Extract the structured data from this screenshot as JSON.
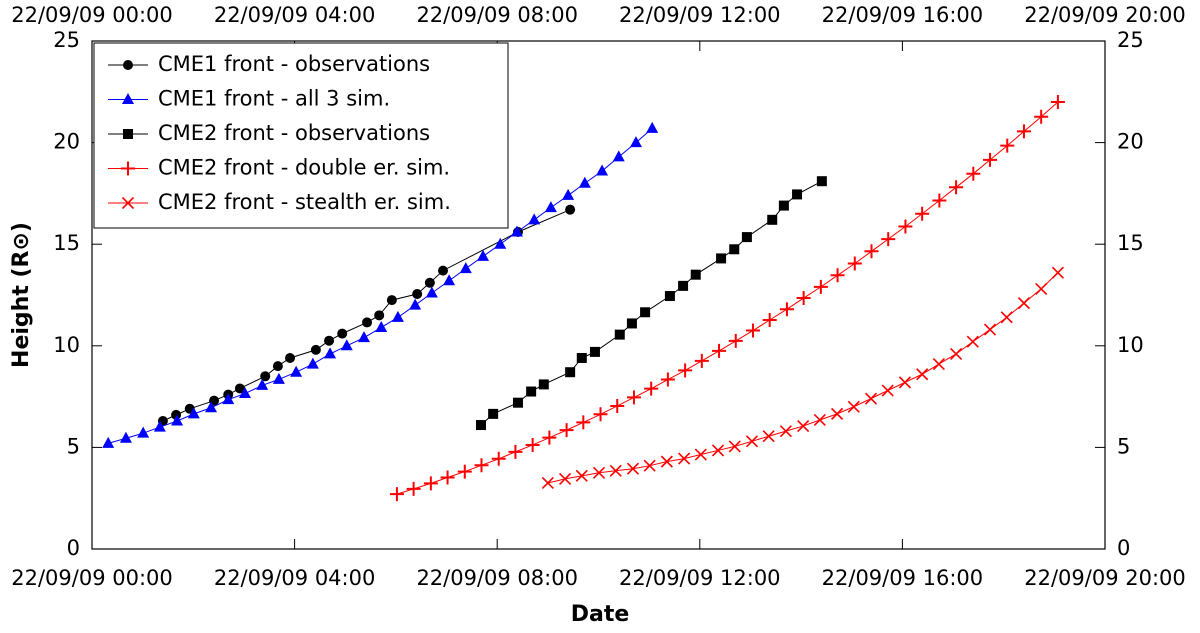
{
  "chart_data": {
    "type": "line",
    "xlabel": "Date",
    "ylabel": "Height (R⊙)",
    "xlim": [
      0,
      20
    ],
    "xticks": [
      {
        "value": 0,
        "label": "22/09/09 00:00"
      },
      {
        "value": 4,
        "label": "22/09/09 04:00"
      },
      {
        "value": 8,
        "label": "22/09/09 08:00"
      },
      {
        "value": 12,
        "label": "22/09/09 12:00"
      },
      {
        "value": 16,
        "label": "22/09/09 16:00"
      },
      {
        "value": 20,
        "label": "22/09/09 20:00"
      }
    ],
    "ylim": [
      0,
      25
    ],
    "yticks": [
      0,
      5,
      10,
      15,
      20,
      25
    ],
    "legend": "upper left",
    "grid": false,
    "series": [
      {
        "name": "CME1 front - observations",
        "color": "#000000",
        "marker": "circle",
        "x": [
          1.4,
          1.66,
          1.93,
          2.41,
          2.69,
          2.92,
          3.42,
          3.67,
          3.91,
          4.42,
          4.68,
          4.94,
          5.43,
          5.67,
          5.92,
          6.42,
          6.67,
          6.93,
          8.41,
          9.44
        ],
        "values": [
          6.3,
          6.6,
          6.9,
          7.3,
          7.6,
          7.9,
          8.5,
          9.0,
          9.4,
          9.8,
          10.25,
          10.6,
          11.15,
          11.5,
          12.25,
          12.55,
          13.1,
          13.7,
          15.6,
          16.7
        ]
      },
      {
        "name": "CME1 front - all 3 sim.",
        "color": "#0000ff",
        "marker": "triangle",
        "x": [
          0.32,
          0.67,
          1.01,
          1.34,
          1.68,
          2.01,
          2.35,
          2.69,
          3.02,
          3.36,
          3.69,
          4.03,
          4.36,
          4.7,
          5.03,
          5.37,
          5.71,
          6.04,
          6.38,
          6.71,
          7.05,
          7.38,
          7.72,
          8.06,
          8.39,
          8.73,
          9.06,
          9.4,
          9.73,
          10.07,
          10.4,
          10.74,
          11.06
        ],
        "values": [
          5.2,
          5.45,
          5.7,
          6.0,
          6.3,
          6.65,
          6.95,
          7.35,
          7.65,
          8.05,
          8.35,
          8.7,
          9.1,
          9.6,
          10.0,
          10.4,
          10.9,
          11.4,
          12.0,
          12.6,
          13.2,
          13.8,
          14.4,
          15.0,
          15.6,
          16.2,
          16.8,
          17.4,
          18.0,
          18.6,
          19.3,
          20.0,
          20.7
        ]
      },
      {
        "name": "CME2 front - observations",
        "color": "#000000",
        "marker": "square",
        "x": [
          7.68,
          7.92,
          8.41,
          8.67,
          8.92,
          9.44,
          9.67,
          9.93,
          10.42,
          10.66,
          10.92,
          11.41,
          11.67,
          11.92,
          12.42,
          12.68,
          12.93,
          13.43,
          13.66,
          13.92,
          14.41
        ],
        "values": [
          6.1,
          6.65,
          7.2,
          7.75,
          8.1,
          8.7,
          9.4,
          9.7,
          10.55,
          11.1,
          11.65,
          12.45,
          12.95,
          13.5,
          14.3,
          14.75,
          15.35,
          16.2,
          16.9,
          17.45,
          18.1
        ]
      },
      {
        "name": "CME2 front - double er. sim.",
        "color": "#ff0000",
        "marker": "plus",
        "x": [
          6.02,
          6.35,
          6.69,
          7.02,
          7.36,
          7.69,
          8.03,
          8.36,
          8.7,
          9.03,
          9.37,
          9.7,
          10.04,
          10.37,
          10.7,
          11.04,
          11.37,
          11.71,
          12.04,
          12.38,
          12.71,
          13.05,
          13.38,
          13.72,
          14.05,
          14.39,
          14.72,
          15.06,
          15.39,
          15.72,
          16.06,
          16.39,
          16.73,
          17.06,
          17.4,
          17.73,
          18.07,
          18.4,
          18.74,
          19.07
        ],
        "values": [
          2.7,
          2.96,
          3.23,
          3.52,
          3.81,
          4.12,
          4.44,
          4.78,
          5.12,
          5.48,
          5.85,
          6.23,
          6.63,
          7.04,
          7.46,
          7.89,
          8.34,
          8.79,
          9.26,
          9.75,
          10.24,
          10.75,
          11.27,
          11.8,
          12.35,
          12.9,
          13.47,
          14.05,
          14.65,
          15.25,
          15.87,
          16.5,
          17.15,
          17.8,
          18.47,
          19.15,
          19.85,
          20.55,
          21.27,
          22.0
        ]
      },
      {
        "name": "CME2 front - stealth er. sim.",
        "color": "#ff0000",
        "marker": "x",
        "x": [
          9.0,
          9.34,
          9.67,
          10.01,
          10.34,
          10.68,
          11.01,
          11.35,
          11.69,
          12.02,
          12.36,
          12.69,
          13.03,
          13.36,
          13.7,
          14.04,
          14.37,
          14.71,
          15.04,
          15.38,
          15.71,
          16.05,
          16.39,
          16.72,
          17.06,
          17.39,
          17.73,
          18.06,
          18.4,
          18.74,
          19.07
        ],
        "values": [
          3.25,
          3.45,
          3.6,
          3.75,
          3.85,
          3.95,
          4.1,
          4.3,
          4.45,
          4.65,
          4.85,
          5.05,
          5.3,
          5.55,
          5.8,
          6.05,
          6.35,
          6.65,
          7.0,
          7.4,
          7.8,
          8.2,
          8.6,
          9.1,
          9.6,
          10.2,
          10.8,
          11.4,
          12.1,
          12.8,
          13.6
        ]
      }
    ]
  }
}
